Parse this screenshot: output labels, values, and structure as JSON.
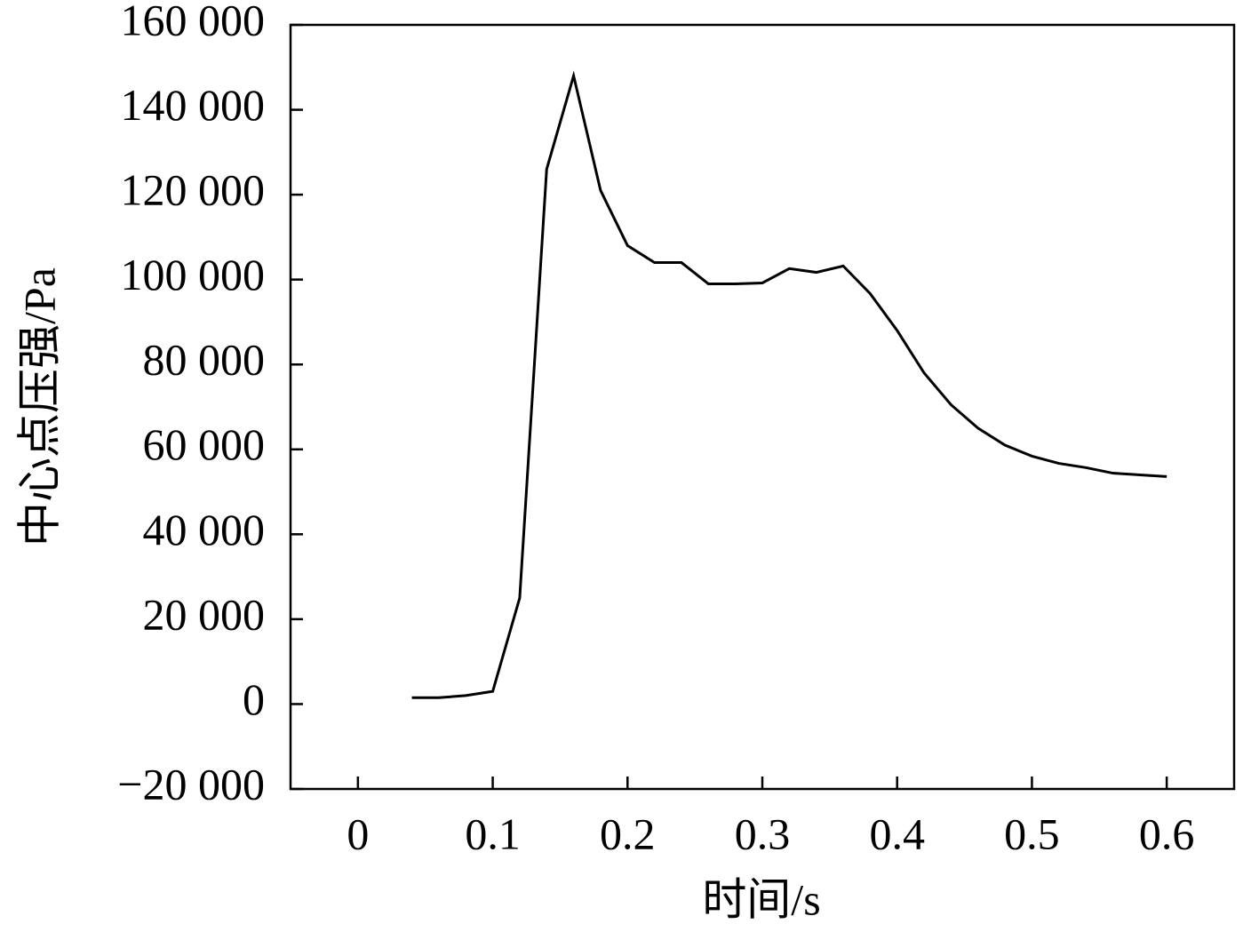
{
  "chart_data": {
    "type": "line",
    "x_label": "时间/s",
    "y_label": "中心点压强/Pa",
    "x": [
      0.04,
      0.06,
      0.08,
      0.1,
      0.12,
      0.14,
      0.16,
      0.18,
      0.2,
      0.22,
      0.24,
      0.26,
      0.28,
      0.3,
      0.32,
      0.34,
      0.36,
      0.38,
      0.4,
      0.42,
      0.44,
      0.46,
      0.48,
      0.5,
      0.52,
      0.54,
      0.56,
      0.58,
      0.6
    ],
    "values": [
      1500,
      1500,
      2000,
      3000,
      25000,
      126000,
      148000,
      121000,
      108000,
      104000,
      104000,
      99000,
      99000,
      99200,
      102600,
      101700,
      103200,
      96700,
      88000,
      78000,
      70500,
      65000,
      61000,
      58400,
      56700,
      55700,
      54400,
      54000,
      53600
    ],
    "color": "#000000",
    "xlim": [
      -0.05,
      0.65
    ],
    "xticks": [
      0,
      0.1,
      0.2,
      0.3,
      0.4,
      0.5,
      0.6
    ],
    "ylim": [
      -20000,
      160000
    ],
    "yticks": [
      {
        "value": -20000,
        "label": "−20 000"
      },
      0,
      {
        "value": 20000,
        "label": "20 000"
      },
      {
        "value": 40000,
        "label": "40 000"
      },
      {
        "value": 60000,
        "label": "60 000"
      },
      {
        "value": 80000,
        "label": "80 000"
      },
      {
        "value": 100000,
        "label": "100 000"
      },
      {
        "value": 120000,
        "label": "120 000"
      },
      {
        "value": 140000,
        "label": "140 000"
      },
      {
        "value": 160000,
        "label": "160 000"
      }
    ],
    "grid": false
  }
}
